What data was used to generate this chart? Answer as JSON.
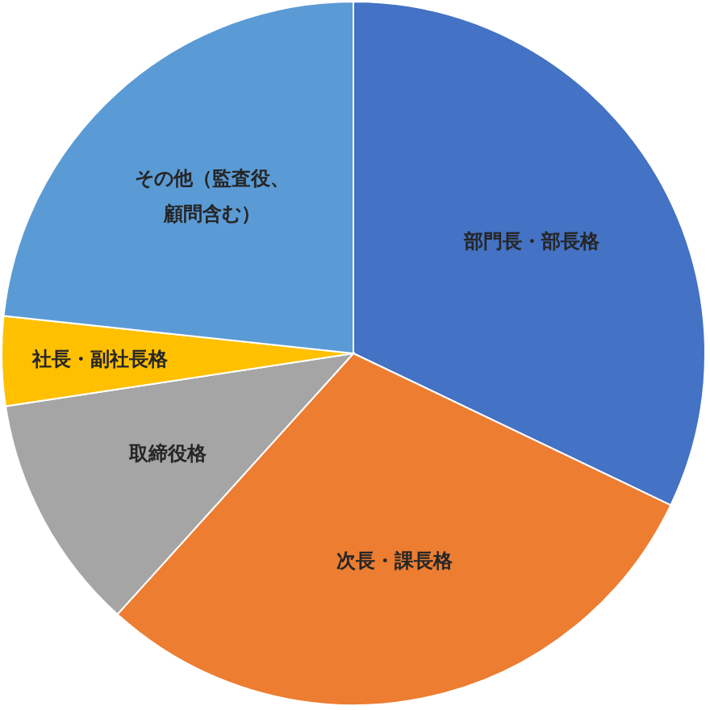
{
  "chart_data": {
    "type": "pie",
    "categories": [
      "部門長・部長格",
      "次長・課長格",
      "取締役格",
      "社長・副社長格",
      "その他（監査役、顧問含む）"
    ],
    "values": [
      32.1,
      29.6,
      10.9,
      4.1,
      23.3
    ],
    "colors": [
      "#4472c4",
      "#ed7d31",
      "#a5a5a5",
      "#ffc000",
      "#5b9bd5"
    ],
    "legend": false
  }
}
